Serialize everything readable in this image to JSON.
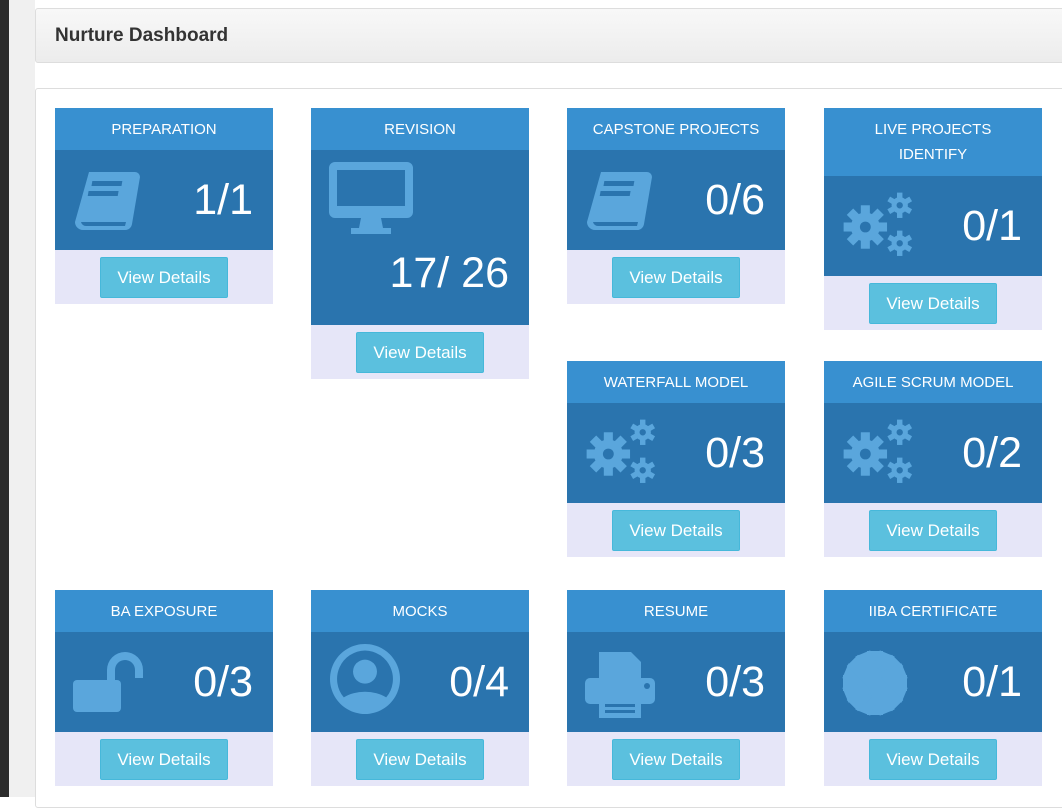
{
  "panel": {
    "title": "Nurture Dashboard"
  },
  "button_label": "View Details",
  "colors": {
    "header": "#3890d0",
    "body": "#2a74ae",
    "icon": "#5aa6dc",
    "footer": "#e6e6f8",
    "button": "#5bc0de"
  },
  "cards": [
    {
      "title": "PREPARATION",
      "value": "1/1",
      "icon": "book-icon"
    },
    {
      "title": "REVISION",
      "value": "17/ 26",
      "icon": "desktop-icon"
    },
    {
      "title": "CAPSTONE PROJECTS",
      "value": "0/6",
      "icon": "book-icon"
    },
    {
      "title": "LIVE PROJECTS IDENTIFY",
      "value": "0/1",
      "icon": "gears-icon"
    },
    {
      "title": "WATERFALL MODEL",
      "value": "0/3",
      "icon": "gears-icon"
    },
    {
      "title": "AGILE SCRUM MODEL",
      "value": "0/2",
      "icon": "gears-icon"
    },
    {
      "title": "BA EXPOSURE",
      "value": "0/3",
      "icon": "unlock-icon"
    },
    {
      "title": "MOCKS",
      "value": "0/4",
      "icon": "user-circle-icon"
    },
    {
      "title": "RESUME",
      "value": "0/3",
      "icon": "print-icon"
    },
    {
      "title": "IIBA CERTIFICATE",
      "value": "0/1",
      "icon": "certificate-icon"
    }
  ]
}
